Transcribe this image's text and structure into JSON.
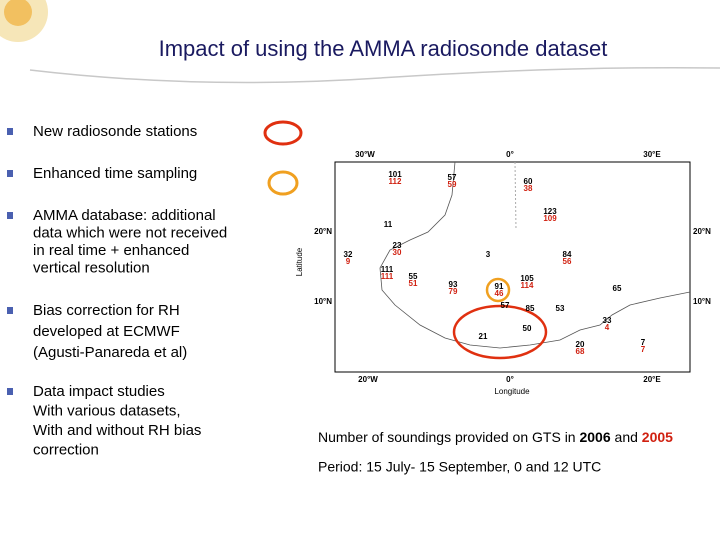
{
  "header": {
    "title": "Impact of using the AMMA radiosonde dataset"
  },
  "bullets": [
    {
      "lines": [
        "New radiosonde stations"
      ]
    },
    {
      "lines": [
        "Enhanced time sampling"
      ]
    },
    {
      "lines": [
        "AMMA database: additional",
        "data which were not received",
        "in real time + enhanced",
        "vertical resolution"
      ]
    },
    {
      "lines": [
        "Bias correction for RH",
        "developed at ECMWF",
        "(Agusti-Panareda et al)"
      ]
    },
    {
      "lines": [
        "Data impact studies",
        "With various datasets,",
        "With and without RH bias",
        "correction"
      ]
    }
  ],
  "map": {
    "top_labels": [
      "30°W",
      "0°",
      "30°E"
    ],
    "bottom_labels": [
      "20°W",
      "0°",
      "20°E"
    ],
    "left_labels": [
      "20°N",
      "10°N"
    ],
    "right_labels": [
      "20°N",
      "10°N"
    ],
    "x_axis_label": "Longitude",
    "y_axis_label": "Latitude",
    "stations": [
      {
        "total": "101",
        "gts": "112"
      },
      {
        "total": "57",
        "gts": "59"
      },
      {
        "total": "60",
        "gts": "38"
      },
      {
        "total": "123",
        "gts": "109"
      },
      {
        "total": "11"
      },
      {
        "total": "23",
        "gts": "30"
      },
      {
        "total": "32",
        "gts": "9"
      },
      {
        "total": "3"
      },
      {
        "total": "84",
        "gts": "56"
      },
      {
        "total": "111",
        "gts": "111"
      },
      {
        "total": "55",
        "gts": "51"
      },
      {
        "total": "93",
        "gts": "79"
      },
      {
        "total": "91",
        "gts": "46"
      },
      {
        "total": "105",
        "gts": "114"
      },
      {
        "total": "65"
      },
      {
        "total": "57"
      },
      {
        "total": "85"
      },
      {
        "total": "53"
      },
      {
        "total": "33",
        "gts": "4"
      },
      {
        "total": "21"
      },
      {
        "total": "50"
      },
      {
        "total": "7",
        "gts": "7"
      },
      {
        "total": "20",
        "gts": "68"
      }
    ]
  },
  "caption": {
    "text": "Number of soundings provided on GTS in ",
    "year1": "2006",
    "and": " and ",
    "year2": "2005",
    "period": "Period: 15 July- 15 September, 0 and 12 UTC"
  }
}
